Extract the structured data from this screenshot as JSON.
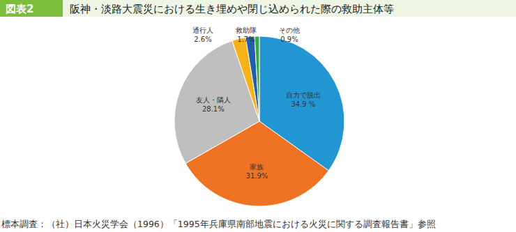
{
  "header": {
    "label": "図表2"
  },
  "chart_data": {
    "type": "pie",
    "title": "阪神・淡路大震災における生き埋めや閉じ込められた際の救助主体等",
    "categories": [
      "自力で脱出",
      "家族",
      "友人・隣人",
      "通行人",
      "救助隊",
      "その他"
    ],
    "values": [
      34.9,
      31.9,
      28.1,
      2.6,
      1.7,
      0.9
    ],
    "value_labels": [
      "34.9 %",
      "31.9%",
      "28.1%",
      "2.6%",
      "1.7%",
      "0.9%"
    ],
    "colors": [
      "#2196d3",
      "#ee7424",
      "#bfbfbf",
      "#f5b31a",
      "#2160a8",
      "#3aa84b"
    ],
    "data_labels": true
  },
  "footer": {
    "source": "標本調査：（社）日本火災学会（1996）「1995年兵庫県南部地震における火災に関する調査報告書」参照"
  }
}
